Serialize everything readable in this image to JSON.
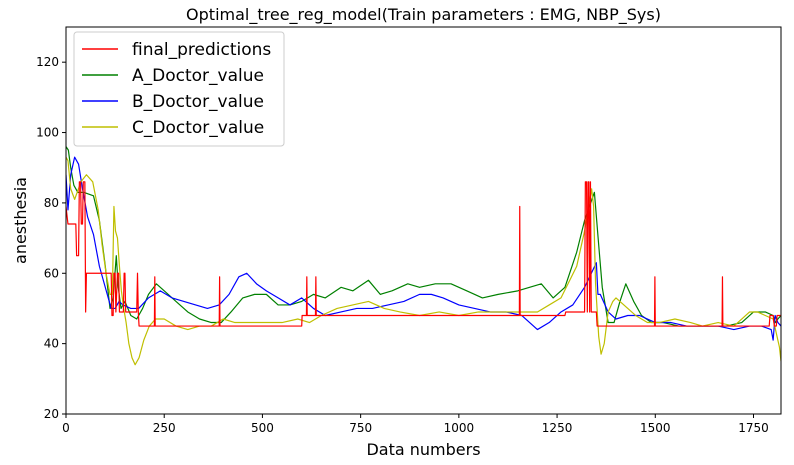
{
  "chart_data": {
    "type": "line",
    "title": "Optimal_tree_reg_model(Train parameters : EMG, NBP_Sys)",
    "xlabel": "Data numbers",
    "ylabel": "anesthesia",
    "xlim": [
      0,
      1820
    ],
    "ylim": [
      20,
      130
    ],
    "xticks": [
      0,
      250,
      500,
      750,
      1000,
      1250,
      1500,
      1750
    ],
    "yticks": [
      20,
      40,
      60,
      80,
      100,
      120
    ],
    "legend_position": "top-left",
    "series": [
      {
        "name": "final_predictions",
        "color": "#ff0000",
        "points": [
          [
            0,
            79
          ],
          [
            5,
            74
          ],
          [
            25,
            74
          ],
          [
            27,
            65
          ],
          [
            32,
            65
          ],
          [
            34,
            86
          ],
          [
            37,
            86
          ],
          [
            39,
            74
          ],
          [
            42,
            74
          ],
          [
            44,
            86
          ],
          [
            48,
            86
          ],
          [
            50,
            49
          ],
          [
            52,
            60
          ],
          [
            115,
            60
          ],
          [
            117,
            48
          ],
          [
            120,
            48
          ],
          [
            122,
            60
          ],
          [
            125,
            60
          ],
          [
            127,
            49
          ],
          [
            131,
            60
          ],
          [
            134,
            60
          ],
          [
            136,
            49
          ],
          [
            146,
            49
          ],
          [
            148,
            60
          ],
          [
            150,
            60
          ],
          [
            152,
            49
          ],
          [
            155,
            49
          ],
          [
            157,
            49
          ],
          [
            180,
            49
          ],
          [
            182,
            60
          ],
          [
            184,
            49
          ],
          [
            186,
            45
          ],
          [
            225,
            45
          ],
          [
            226,
            59
          ],
          [
            227,
            45
          ],
          [
            390,
            45
          ],
          [
            391,
            59
          ],
          [
            392,
            45
          ],
          [
            600,
            45
          ],
          [
            601,
            48
          ],
          [
            612,
            48
          ],
          [
            613,
            59
          ],
          [
            614,
            48
          ],
          [
            635,
            48
          ],
          [
            636,
            59
          ],
          [
            637,
            48
          ],
          [
            1150,
            48
          ],
          [
            1154,
            48
          ],
          [
            1155,
            79
          ],
          [
            1156,
            48
          ],
          [
            1270,
            48
          ],
          [
            1272,
            49
          ],
          [
            1320,
            49
          ],
          [
            1322,
            86
          ],
          [
            1325,
            86
          ],
          [
            1327,
            49
          ],
          [
            1329,
            86
          ],
          [
            1331,
            86
          ],
          [
            1333,
            49
          ],
          [
            1335,
            86
          ],
          [
            1337,
            49
          ],
          [
            1350,
            49
          ],
          [
            1352,
            45
          ],
          [
            1498,
            45
          ],
          [
            1499,
            59
          ],
          [
            1500,
            45
          ],
          [
            1670,
            45
          ],
          [
            1671,
            59
          ],
          [
            1672,
            45
          ],
          [
            1790,
            45
          ],
          [
            1792,
            48
          ],
          [
            1800,
            48
          ],
          [
            1803,
            45
          ],
          [
            1808,
            45
          ],
          [
            1810,
            48
          ],
          [
            1820,
            48
          ]
        ]
      },
      {
        "name": "A_Doctor_value",
        "color": "#008000",
        "points": [
          [
            0,
            96
          ],
          [
            6,
            95
          ],
          [
            12,
            90
          ],
          [
            20,
            85
          ],
          [
            30,
            83
          ],
          [
            45,
            83
          ],
          [
            70,
            82
          ],
          [
            85,
            75
          ],
          [
            100,
            62
          ],
          [
            112,
            50
          ],
          [
            120,
            53
          ],
          [
            128,
            65
          ],
          [
            133,
            56
          ],
          [
            140,
            50
          ],
          [
            150,
            52
          ],
          [
            165,
            48
          ],
          [
            180,
            47
          ],
          [
            195,
            50
          ],
          [
            210,
            54
          ],
          [
            230,
            57
          ],
          [
            250,
            55
          ],
          [
            280,
            52
          ],
          [
            310,
            49
          ],
          [
            340,
            47
          ],
          [
            370,
            46
          ],
          [
            395,
            46
          ],
          [
            420,
            49
          ],
          [
            450,
            53
          ],
          [
            480,
            54
          ],
          [
            510,
            54
          ],
          [
            540,
            51
          ],
          [
            570,
            51
          ],
          [
            600,
            52
          ],
          [
            630,
            54
          ],
          [
            660,
            53
          ],
          [
            700,
            56
          ],
          [
            730,
            55
          ],
          [
            770,
            58
          ],
          [
            800,
            54
          ],
          [
            830,
            55
          ],
          [
            870,
            57
          ],
          [
            900,
            56
          ],
          [
            940,
            57
          ],
          [
            980,
            57
          ],
          [
            1020,
            55
          ],
          [
            1060,
            53
          ],
          [
            1100,
            54
          ],
          [
            1150,
            55
          ],
          [
            1210,
            57
          ],
          [
            1240,
            53
          ],
          [
            1270,
            56
          ],
          [
            1300,
            66
          ],
          [
            1320,
            75
          ],
          [
            1345,
            83
          ],
          [
            1356,
            68
          ],
          [
            1365,
            56
          ],
          [
            1380,
            46
          ],
          [
            1395,
            46
          ],
          [
            1410,
            52
          ],
          [
            1425,
            57
          ],
          [
            1445,
            52
          ],
          [
            1465,
            48
          ],
          [
            1490,
            46
          ],
          [
            1520,
            46
          ],
          [
            1560,
            45
          ],
          [
            1600,
            45
          ],
          [
            1640,
            45
          ],
          [
            1680,
            45
          ],
          [
            1720,
            46
          ],
          [
            1750,
            49
          ],
          [
            1780,
            49
          ],
          [
            1800,
            48
          ],
          [
            1806,
            46
          ],
          [
            1812,
            47
          ],
          [
            1820,
            48
          ]
        ]
      },
      {
        "name": "B_Doctor_value",
        "color": "#0000ff",
        "points": [
          [
            0,
            88
          ],
          [
            5,
            78
          ],
          [
            12,
            88
          ],
          [
            22,
            93
          ],
          [
            32,
            91
          ],
          [
            42,
            84
          ],
          [
            55,
            76
          ],
          [
            70,
            71
          ],
          [
            85,
            62
          ],
          [
            100,
            56
          ],
          [
            115,
            50
          ],
          [
            125,
            50
          ],
          [
            135,
            52
          ],
          [
            145,
            51
          ],
          [
            165,
            50
          ],
          [
            185,
            50
          ],
          [
            210,
            53
          ],
          [
            240,
            55
          ],
          [
            270,
            53
          ],
          [
            300,
            52
          ],
          [
            330,
            51
          ],
          [
            360,
            50
          ],
          [
            390,
            51
          ],
          [
            415,
            54
          ],
          [
            440,
            59
          ],
          [
            460,
            60
          ],
          [
            485,
            57
          ],
          [
            510,
            55
          ],
          [
            540,
            53
          ],
          [
            570,
            51
          ],
          [
            600,
            53
          ],
          [
            630,
            50
          ],
          [
            660,
            48
          ],
          [
            700,
            49
          ],
          [
            740,
            50
          ],
          [
            780,
            50
          ],
          [
            820,
            51
          ],
          [
            860,
            52
          ],
          [
            900,
            54
          ],
          [
            930,
            54
          ],
          [
            960,
            53
          ],
          [
            1000,
            51
          ],
          [
            1040,
            50
          ],
          [
            1080,
            49
          ],
          [
            1120,
            49
          ],
          [
            1160,
            48
          ],
          [
            1200,
            44
          ],
          [
            1230,
            46
          ],
          [
            1260,
            49
          ],
          [
            1290,
            51
          ],
          [
            1320,
            56
          ],
          [
            1350,
            63
          ],
          [
            1354,
            54
          ],
          [
            1360,
            54
          ],
          [
            1380,
            49
          ],
          [
            1400,
            47
          ],
          [
            1430,
            48
          ],
          [
            1460,
            48
          ],
          [
            1500,
            46
          ],
          [
            1540,
            46
          ],
          [
            1580,
            45
          ],
          [
            1620,
            45
          ],
          [
            1660,
            45
          ],
          [
            1700,
            44
          ],
          [
            1740,
            45
          ],
          [
            1770,
            45
          ],
          [
            1795,
            44
          ],
          [
            1800,
            41
          ],
          [
            1805,
            48
          ],
          [
            1812,
            46
          ],
          [
            1820,
            45
          ]
        ]
      },
      {
        "name": "C_Doctor_value",
        "color": "#bfbf00",
        "points": [
          [
            0,
            93
          ],
          [
            5,
            92
          ],
          [
            12,
            84
          ],
          [
            22,
            81
          ],
          [
            38,
            86
          ],
          [
            52,
            88
          ],
          [
            68,
            86
          ],
          [
            82,
            78
          ],
          [
            92,
            68
          ],
          [
            102,
            60
          ],
          [
            112,
            54
          ],
          [
            118,
            54
          ],
          [
            122,
            79
          ],
          [
            126,
            72
          ],
          [
            131,
            70
          ],
          [
            136,
            62
          ],
          [
            141,
            55
          ],
          [
            147,
            50
          ],
          [
            153,
            46
          ],
          [
            160,
            40
          ],
          [
            168,
            36
          ],
          [
            176,
            34
          ],
          [
            186,
            36
          ],
          [
            198,
            41
          ],
          [
            212,
            45
          ],
          [
            228,
            47
          ],
          [
            250,
            47
          ],
          [
            280,
            45
          ],
          [
            310,
            44
          ],
          [
            340,
            45
          ],
          [
            370,
            45
          ],
          [
            400,
            47
          ],
          [
            430,
            46
          ],
          [
            470,
            46
          ],
          [
            510,
            46
          ],
          [
            550,
            46
          ],
          [
            590,
            47
          ],
          [
            620,
            46
          ],
          [
            650,
            48
          ],
          [
            690,
            50
          ],
          [
            730,
            51
          ],
          [
            770,
            52
          ],
          [
            810,
            50
          ],
          [
            850,
            49
          ],
          [
            900,
            48
          ],
          [
            950,
            49
          ],
          [
            1000,
            48
          ],
          [
            1050,
            49
          ],
          [
            1100,
            49
          ],
          [
            1150,
            49
          ],
          [
            1200,
            49
          ],
          [
            1230,
            51
          ],
          [
            1260,
            53
          ],
          [
            1300,
            62
          ],
          [
            1320,
            72
          ],
          [
            1338,
            84
          ],
          [
            1343,
            79
          ],
          [
            1348,
            57
          ],
          [
            1356,
            42
          ],
          [
            1362,
            37
          ],
          [
            1370,
            40
          ],
          [
            1380,
            49
          ],
          [
            1392,
            52
          ],
          [
            1400,
            53
          ],
          [
            1420,
            51
          ],
          [
            1450,
            48
          ],
          [
            1480,
            46
          ],
          [
            1510,
            46
          ],
          [
            1550,
            47
          ],
          [
            1590,
            46
          ],
          [
            1620,
            45
          ],
          [
            1660,
            46
          ],
          [
            1700,
            45
          ],
          [
            1720,
            47
          ],
          [
            1740,
            49
          ],
          [
            1760,
            49
          ],
          [
            1780,
            48
          ],
          [
            1800,
            47
          ],
          [
            1810,
            42
          ],
          [
            1816,
            39
          ],
          [
            1820,
            35
          ]
        ]
      }
    ]
  }
}
